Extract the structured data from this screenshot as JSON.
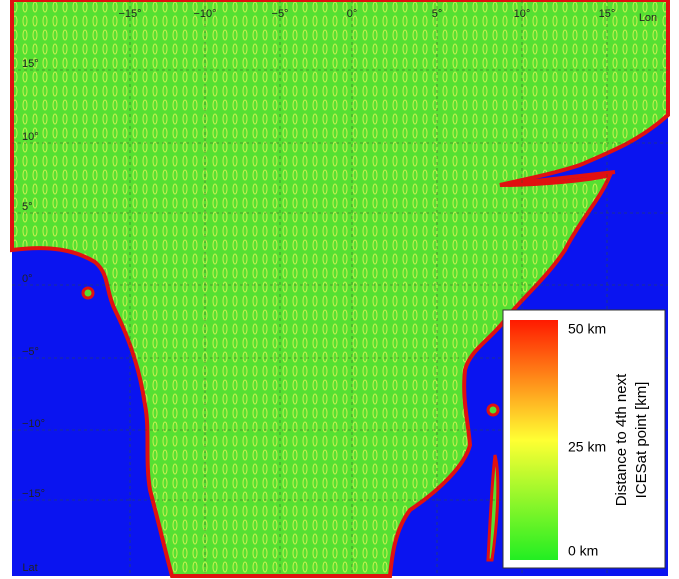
{
  "map": {
    "lon_labels": [
      "−15°",
      "−10°",
      "−5°",
      "0°",
      "5°",
      "10°",
      "15°"
    ],
    "lon_axis": "Lon",
    "lat_labels": [
      "15°",
      "10°",
      "5°",
      "0°",
      "−5°",
      "−10°",
      "−15°"
    ],
    "lat_axis": "Lat",
    "legend": {
      "title_lines": [
        "Distance to 4th next",
        "ICESat point [km]"
      ],
      "labels": [
        "50 km",
        "25 km",
        "0 km"
      ]
    }
  }
}
